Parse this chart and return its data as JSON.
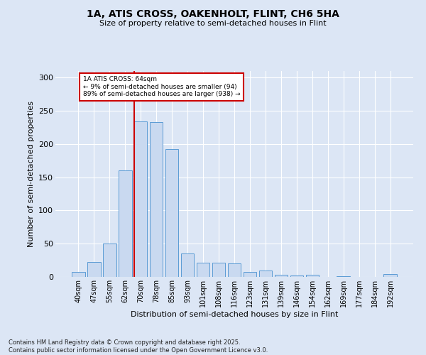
{
  "title_line1": "1A, ATIS CROSS, OAKENHOLT, FLINT, CH6 5HA",
  "title_line2": "Size of property relative to semi-detached houses in Flint",
  "xlabel": "Distribution of semi-detached houses by size in Flint",
  "ylabel": "Number of semi-detached properties",
  "categories": [
    "40sqm",
    "47sqm",
    "55sqm",
    "62sqm",
    "70sqm",
    "78sqm",
    "85sqm",
    "93sqm",
    "101sqm",
    "108sqm",
    "116sqm",
    "123sqm",
    "131sqm",
    "139sqm",
    "146sqm",
    "154sqm",
    "162sqm",
    "169sqm",
    "177sqm",
    "184sqm",
    "192sqm"
  ],
  "values": [
    7,
    22,
    50,
    160,
    234,
    233,
    192,
    35,
    21,
    21,
    20,
    7,
    10,
    3,
    2,
    3,
    0,
    1,
    0,
    0,
    4
  ],
  "bar_color": "#c9d9f0",
  "bar_edge_color": "#5b9bd5",
  "vline_x": 3.57,
  "vline_color": "#cc0000",
  "annotation_title": "1A ATIS CROSS: 64sqm",
  "annotation_line1": "← 9% of semi-detached houses are smaller (94)",
  "annotation_line2": "89% of semi-detached houses are larger (938) →",
  "annotation_box_color": "#cc0000",
  "ylim": [
    0,
    310
  ],
  "yticks": [
    0,
    50,
    100,
    150,
    200,
    250,
    300
  ],
  "footer_line1": "Contains HM Land Registry data © Crown copyright and database right 2025.",
  "footer_line2": "Contains public sector information licensed under the Open Government Licence v3.0.",
  "bg_color": "#dce6f5",
  "plot_bg_color": "#dce6f5"
}
